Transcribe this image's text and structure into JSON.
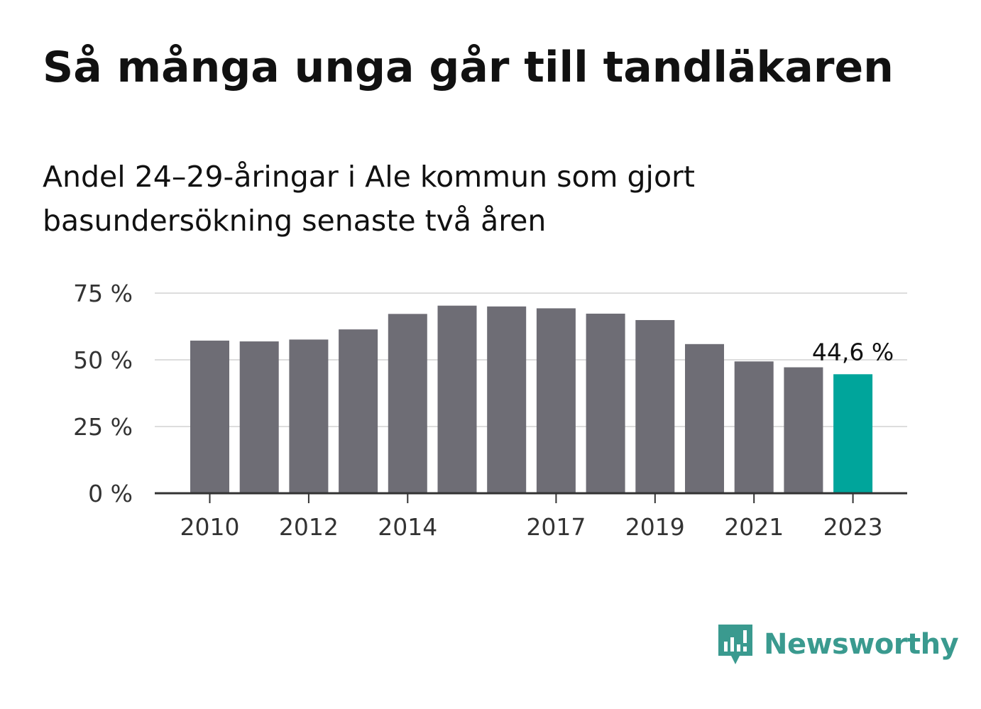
{
  "title": "Så många unga går till tandläkaren",
  "subtitle": "Andel 24–29-åringar i Ale kommun som gjort basundersökning senaste två åren",
  "brand": {
    "name": "Newsworthy",
    "color": "#3a9a8f",
    "icon": "bar-chart-speech-bubble-icon"
  },
  "chart_data": {
    "type": "bar",
    "categories": [
      "2010",
      "2011",
      "2012",
      "2013",
      "2014",
      "2015",
      "2016",
      "2017",
      "2018",
      "2019",
      "2020",
      "2021",
      "2022",
      "2023"
    ],
    "values": [
      57.2,
      56.9,
      57.6,
      61.4,
      67.2,
      70.3,
      70.0,
      69.3,
      67.3,
      64.9,
      55.9,
      49.4,
      47.2,
      44.6
    ],
    "x_tick_labels": [
      "2010",
      "2012",
      "2014",
      "2017",
      "2019",
      "2021",
      "2023"
    ],
    "y_ticks": [
      0,
      25,
      50,
      75
    ],
    "y_tick_labels": [
      "0 %",
      "25 %",
      "50 %",
      "75 %"
    ],
    "ylim": [
      0,
      75
    ],
    "highlight": {
      "category": "2023",
      "label": "44,6 %"
    },
    "colors": {
      "bar": "#6e6d75",
      "highlight": "#00a59b",
      "grid": "#dddddd",
      "axis": "#333333"
    },
    "grid": true
  }
}
